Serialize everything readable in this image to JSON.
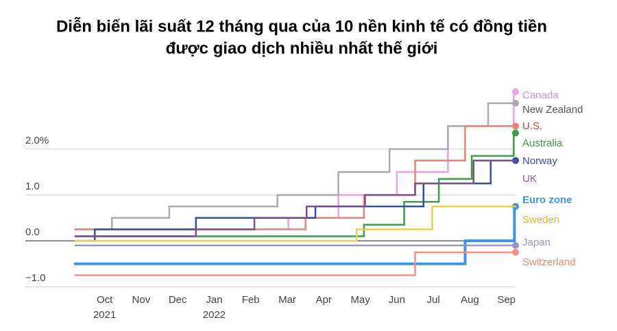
{
  "chart_data": {
    "type": "step-line",
    "title_lines": [
      "Diễn biến lãi suất 12 tháng qua của 10 nền kinh tế có đồng tiền",
      "được giao dịch nhiều nhất thế giới"
    ],
    "xlim": [
      -0.8,
      11.25
    ],
    "xticks": [
      {
        "value": 0,
        "label": "Oct"
      },
      {
        "value": 1,
        "label": "Nov"
      },
      {
        "value": 2,
        "label": "Dec"
      },
      {
        "value": 3,
        "label": "Jan"
      },
      {
        "value": 4,
        "label": "Feb"
      },
      {
        "value": 5,
        "label": "Mar"
      },
      {
        "value": 6,
        "label": "Apr"
      },
      {
        "value": 7,
        "label": "May"
      },
      {
        "value": 8,
        "label": "Jun"
      },
      {
        "value": 9,
        "label": "Jul"
      },
      {
        "value": 10,
        "label": "Aug"
      },
      {
        "value": 11,
        "label": "Sep"
      }
    ],
    "year_labels": [
      {
        "value": 0,
        "label": "2021"
      },
      {
        "value": 3,
        "label": "2022"
      }
    ],
    "ylim": [
      -1.16,
      3.46
    ],
    "yticks": [
      {
        "value": -1,
        "label": "−1.0"
      },
      {
        "value": 0,
        "label": "0.0"
      },
      {
        "value": 1,
        "label": "1.0"
      },
      {
        "value": 2,
        "label": "2.0%"
      }
    ],
    "grid": true,
    "series": [
      {
        "name": "Canada",
        "color": "#eaa2e2",
        "marker": true,
        "x": [
          -0.8,
          5.03,
          6.4,
          8.0,
          9.4,
          11.2
        ],
        "values": [
          0.25,
          0.5,
          1.0,
          1.5,
          2.5,
          3.25
        ]
      },
      {
        "name": "New Zealand",
        "color": "#ababab",
        "marker": true,
        "x": [
          -0.8,
          0.2,
          1.77,
          4.73,
          6.4,
          7.8,
          9.4,
          10.5
        ],
        "values": [
          0.25,
          0.5,
          0.75,
          1.0,
          1.5,
          2.0,
          2.5,
          3.0
        ]
      },
      {
        "name": "U.S.",
        "color": "#e2857a",
        "marker": true,
        "x": [
          -0.8,
          5.5,
          7.1,
          8.5,
          9.87
        ],
        "values": [
          0.25,
          0.5,
          1.0,
          1.75,
          2.5
        ]
      },
      {
        "name": "Australia",
        "color": "#3c9c49",
        "marker": true,
        "x": [
          -0.8,
          7.1,
          8.2,
          9.15,
          10.05,
          11.2
        ],
        "values": [
          0.1,
          0.35,
          0.85,
          1.35,
          1.85,
          2.35
        ]
      },
      {
        "name": "Norway",
        "color": "#35509b",
        "marker": true,
        "x": [
          -0.8,
          -0.27,
          2.5,
          5.77,
          8.73,
          10.57
        ],
        "values": [
          0.0,
          0.25,
          0.5,
          0.75,
          1.25,
          1.75
        ]
      },
      {
        "name": "UK",
        "color": "#7b4c90",
        "marker": false,
        "x": [
          -0.8,
          2.5,
          4.1,
          5.53,
          7.13,
          8.5,
          10.1
        ],
        "values": [
          0.1,
          0.25,
          0.5,
          0.75,
          1.0,
          1.25,
          1.75
        ]
      },
      {
        "name": "Euro zone",
        "color": "#3d96e0",
        "marker": true,
        "bold": true,
        "x": [
          -0.8,
          9.87,
          11.22
        ],
        "values": [
          -0.5,
          0.0,
          0.75
        ]
      },
      {
        "name": "Sweden",
        "color": "#eecd4c",
        "marker": false,
        "x": [
          -0.8,
          6.9,
          8.97
        ],
        "values": [
          0.0,
          0.25,
          0.75
        ]
      },
      {
        "name": "Japan",
        "color": "#9c92c8",
        "marker": true,
        "x": [
          -0.8
        ],
        "values": [
          -0.1
        ]
      },
      {
        "name": "Switzerland",
        "color": "#ec9585",
        "marker": true,
        "x": [
          -0.8,
          8.5
        ],
        "values": [
          -0.75,
          -0.25
        ]
      }
    ]
  }
}
